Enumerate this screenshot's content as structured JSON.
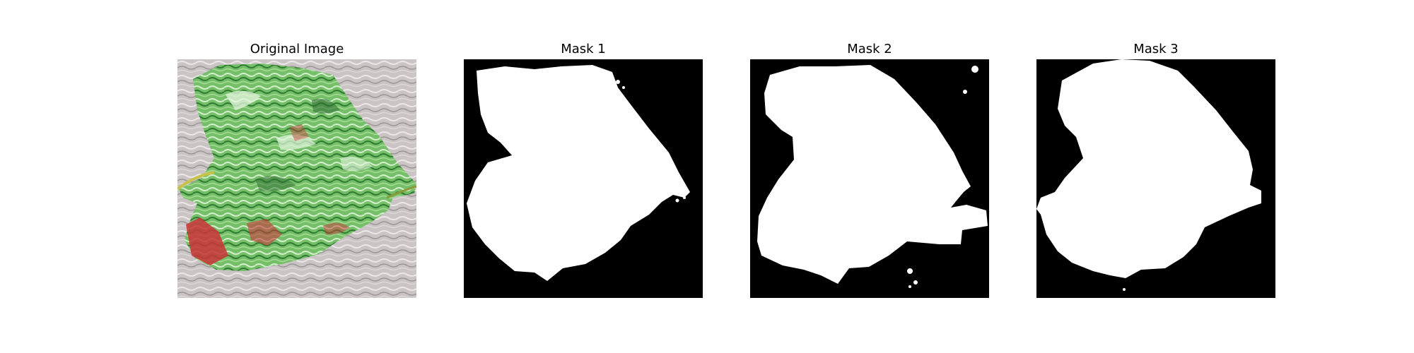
{
  "figure": {
    "panels": [
      {
        "title": "Original Image",
        "kind": "photo"
      },
      {
        "title": "Mask 1",
        "kind": "mask"
      },
      {
        "title": "Mask 2",
        "kind": "mask"
      },
      {
        "title": "Mask 3",
        "kind": "mask"
      }
    ],
    "colors": {
      "background": "#ffffff",
      "mask_fg": "#ffffff",
      "mask_bg": "#000000",
      "green": "#5fb85a",
      "red": "#c8383a",
      "silver": "#c9c3c4"
    }
  }
}
